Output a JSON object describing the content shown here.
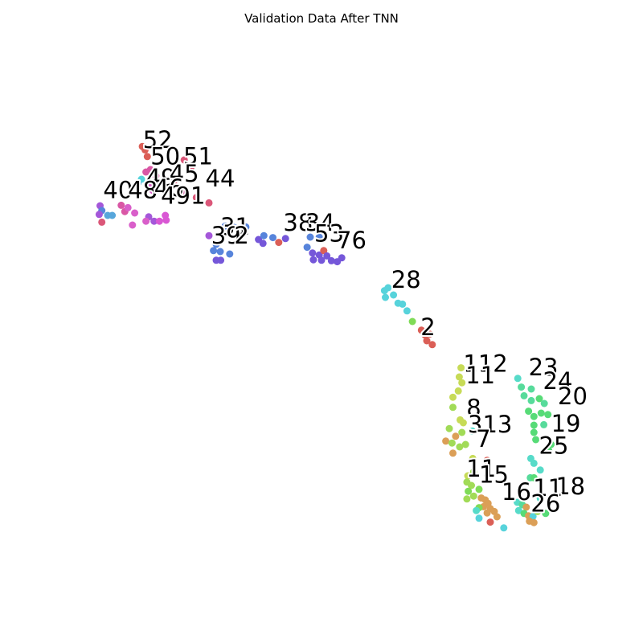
{
  "chart_data": {
    "type": "scatter",
    "title": "Validation Data After TNN",
    "xlabel": "",
    "ylabel": "",
    "axes_visible": false,
    "grid": false,
    "legend": "none",
    "xlim": [
      0,
      100
    ],
    "ylim": [
      0,
      100
    ],
    "palette": "hls",
    "n_classes": 54,
    "point_labels": [
      {
        "text": "52",
        "x": 10.3,
        "y": 86.0
      },
      {
        "text": "50",
        "x": 12.0,
        "y": 82.6
      },
      {
        "text": "51",
        "x": 19.3,
        "y": 82.6
      },
      {
        "text": "49",
        "x": 11.0,
        "y": 78.2
      },
      {
        "text": "45",
        "x": 16.2,
        "y": 79.0
      },
      {
        "text": "44",
        "x": 24.2,
        "y": 78.0
      },
      {
        "text": "40",
        "x": 1.5,
        "y": 75.6
      },
      {
        "text": "48",
        "x": 7.0,
        "y": 75.6
      },
      {
        "text": "46",
        "x": 12.8,
        "y": 76.0
      },
      {
        "text": "491",
        "x": 14.3,
        "y": 74.4
      },
      {
        "text": "31",
        "x": 27.5,
        "y": 68.0
      },
      {
        "text": "39",
        "x": 25.5,
        "y": 66.2
      },
      {
        "text": "2",
        "x": 30.6,
        "y": 66.2
      },
      {
        "text": "38",
        "x": 41.5,
        "y": 68.8
      },
      {
        "text": "34",
        "x": 46.4,
        "y": 68.8
      },
      {
        "text": "53",
        "x": 48.4,
        "y": 66.6
      },
      {
        "text": "76",
        "x": 53.4,
        "y": 65.2
      },
      {
        "text": "28",
        "x": 65.5,
        "y": 57.0
      },
      {
        "text": "2",
        "x": 72.0,
        "y": 47.2
      },
      {
        "text": "112",
        "x": 81.5,
        "y": 39.6
      },
      {
        "text": "11",
        "x": 82.0,
        "y": 37.2
      },
      {
        "text": "23",
        "x": 96.0,
        "y": 38.8
      },
      {
        "text": "24",
        "x": 99.2,
        "y": 36.0
      },
      {
        "text": "20",
        "x": 102.5,
        "y": 32.8
      },
      {
        "text": "8",
        "x": 82.2,
        "y": 30.4
      },
      {
        "text": "19",
        "x": 101.0,
        "y": 27.2
      },
      {
        "text": "313",
        "x": 82.5,
        "y": 27.0
      },
      {
        "text": "7",
        "x": 84.3,
        "y": 24.0
      },
      {
        "text": "25",
        "x": 98.3,
        "y": 22.6
      },
      {
        "text": "11",
        "x": 82.2,
        "y": 17.8
      },
      {
        "text": "15",
        "x": 85.0,
        "y": 16.6
      },
      {
        "text": "16",
        "x": 90.0,
        "y": 13.0
      },
      {
        "text": "18",
        "x": 102.0,
        "y": 14.2
      },
      {
        "text": "11",
        "x": 97.0,
        "y": 13.8
      },
      {
        "text": "26",
        "x": 96.5,
        "y": 10.6
      }
    ],
    "points": [
      {
        "x": 10.2,
        "y": 86.3,
        "c": "#db5f57"
      },
      {
        "x": 10.8,
        "y": 85.6,
        "c": "#db5f57"
      },
      {
        "x": 11.3,
        "y": 84.2,
        "c": "#db5f57"
      },
      {
        "x": 12.0,
        "y": 81.5,
        "c": "#d957a5"
      },
      {
        "x": 11.0,
        "y": 81.0,
        "c": "#d957a5"
      },
      {
        "x": 13.2,
        "y": 80.2,
        "c": "#d957a5"
      },
      {
        "x": 19.5,
        "y": 83.5,
        "c": "#db5779"
      },
      {
        "x": 21.0,
        "y": 82.0,
        "c": "#db5779"
      },
      {
        "x": 17.3,
        "y": 79.0,
        "c": "#db5779"
      },
      {
        "x": 11.6,
        "y": 78.2,
        "c": "#d95fca"
      },
      {
        "x": 12.5,
        "y": 77.2,
        "c": "#d95fca"
      },
      {
        "x": 10.0,
        "y": 79.5,
        "c": "#57d3db"
      },
      {
        "x": 9.2,
        "y": 78.7,
        "c": "#57a6db"
      },
      {
        "x": 15.5,
        "y": 77.6,
        "c": "#d957a5"
      },
      {
        "x": 19.0,
        "y": 76.8,
        "c": "#d957a5"
      },
      {
        "x": 22.2,
        "y": 75.7,
        "c": "#db5779"
      },
      {
        "x": 25.0,
        "y": 74.6,
        "c": "#db5779"
      },
      {
        "x": 0.8,
        "y": 74.0,
        "c": "#a457d9"
      },
      {
        "x": 1.2,
        "y": 73.0,
        "c": "#5784db"
      },
      {
        "x": 0.6,
        "y": 72.2,
        "c": "#a457d9"
      },
      {
        "x": 2.5,
        "y": 72.0,
        "c": "#57a6db"
      },
      {
        "x": 3.5,
        "y": 72.0,
        "c": "#57a6db"
      },
      {
        "x": 1.2,
        "y": 70.6,
        "c": "#db5779"
      },
      {
        "x": 5.5,
        "y": 74.1,
        "c": "#d957a5"
      },
      {
        "x": 6.3,
        "y": 72.8,
        "c": "#d957a5"
      },
      {
        "x": 7.0,
        "y": 73.6,
        "c": "#d95fca"
      },
      {
        "x": 8.5,
        "y": 72.5,
        "c": "#d95fca"
      },
      {
        "x": 11.6,
        "y": 71.7,
        "c": "#a457d9"
      },
      {
        "x": 11.0,
        "y": 70.8,
        "c": "#d95fca"
      },
      {
        "x": 12.8,
        "y": 70.8,
        "c": "#a457d9"
      },
      {
        "x": 14.0,
        "y": 70.8,
        "c": "#d957d4"
      },
      {
        "x": 15.3,
        "y": 72.0,
        "c": "#d957d4"
      },
      {
        "x": 8.0,
        "y": 70.0,
        "c": "#d95fca"
      },
      {
        "x": 15.5,
        "y": 71.0,
        "c": "#d957d4"
      },
      {
        "x": 25.0,
        "y": 67.8,
        "c": "#a457d9"
      },
      {
        "x": 28.6,
        "y": 69.8,
        "c": "#5784db"
      },
      {
        "x": 30.6,
        "y": 69.5,
        "c": "#5784db"
      },
      {
        "x": 33.2,
        "y": 69.6,
        "c": "#5784db"
      },
      {
        "x": 26.6,
        "y": 66.0,
        "c": "#5784db"
      },
      {
        "x": 26.0,
        "y": 64.7,
        "c": "#5784db"
      },
      {
        "x": 27.5,
        "y": 64.5,
        "c": "#5784db"
      },
      {
        "x": 29.6,
        "y": 64.0,
        "c": "#5784db"
      },
      {
        "x": 26.6,
        "y": 62.7,
        "c": "#7557d9"
      },
      {
        "x": 27.6,
        "y": 62.7,
        "c": "#7557d9"
      },
      {
        "x": 36.0,
        "y": 67.0,
        "c": "#7557d9"
      },
      {
        "x": 37.0,
        "y": 66.2,
        "c": "#7557d9"
      },
      {
        "x": 37.2,
        "y": 67.8,
        "c": "#5784db"
      },
      {
        "x": 39.2,
        "y": 67.4,
        "c": "#5784db"
      },
      {
        "x": 40.5,
        "y": 66.4,
        "c": "#db5f57"
      },
      {
        "x": 42.0,
        "y": 67.2,
        "c": "#7557d9"
      },
      {
        "x": 47.5,
        "y": 67.5,
        "c": "#5784db"
      },
      {
        "x": 49.5,
        "y": 67.5,
        "c": "#5784db"
      },
      {
        "x": 46.8,
        "y": 65.4,
        "c": "#5784db"
      },
      {
        "x": 48.0,
        "y": 64.2,
        "c": "#7557d9"
      },
      {
        "x": 49.5,
        "y": 63.8,
        "c": "#7557d9"
      },
      {
        "x": 50.5,
        "y": 64.7,
        "c": "#db5f57"
      },
      {
        "x": 51.2,
        "y": 63.6,
        "c": "#7557d9"
      },
      {
        "x": 48.2,
        "y": 62.8,
        "c": "#7557d9"
      },
      {
        "x": 50.0,
        "y": 62.7,
        "c": "#7557d9"
      },
      {
        "x": 52.2,
        "y": 62.6,
        "c": "#7557d9"
      },
      {
        "x": 53.5,
        "y": 62.4,
        "c": "#7557d9"
      },
      {
        "x": 54.5,
        "y": 63.2,
        "c": "#7557d9"
      },
      {
        "x": 64.0,
        "y": 56.4,
        "c": "#57d3db"
      },
      {
        "x": 64.8,
        "y": 57.0,
        "c": "#57d3db"
      },
      {
        "x": 64.2,
        "y": 55.0,
        "c": "#57d3db"
      },
      {
        "x": 66.0,
        "y": 55.5,
        "c": "#57d3db"
      },
      {
        "x": 67.0,
        "y": 53.8,
        "c": "#57d3db"
      },
      {
        "x": 68.0,
        "y": 53.6,
        "c": "#57d3db"
      },
      {
        "x": 69.0,
        "y": 52.2,
        "c": "#57d3db"
      },
      {
        "x": 70.2,
        "y": 50.0,
        "c": "#7fdb57"
      },
      {
        "x": 72.2,
        "y": 48.2,
        "c": "#db5f57"
      },
      {
        "x": 73.0,
        "y": 47.2,
        "c": "#db5f57"
      },
      {
        "x": 74.0,
        "y": 47.4,
        "c": "#db5f57"
      },
      {
        "x": 73.4,
        "y": 46.0,
        "c": "#db5f57"
      },
      {
        "x": 74.6,
        "y": 45.2,
        "c": "#db5f57"
      },
      {
        "x": 81.0,
        "y": 40.4,
        "c": "#c7db57"
      },
      {
        "x": 80.6,
        "y": 38.5,
        "c": "#c7db57"
      },
      {
        "x": 81.2,
        "y": 37.3,
        "c": "#c7db57"
      },
      {
        "x": 80.4,
        "y": 35.6,
        "c": "#c7db57"
      },
      {
        "x": 79.2,
        "y": 34.3,
        "c": "#c7db57"
      },
      {
        "x": 79.2,
        "y": 32.2,
        "c": "#a1db57"
      },
      {
        "x": 80.8,
        "y": 29.6,
        "c": "#c7db57"
      },
      {
        "x": 81.5,
        "y": 29.0,
        "c": "#c7db57"
      },
      {
        "x": 78.4,
        "y": 27.8,
        "c": "#a1db57"
      },
      {
        "x": 79.8,
        "y": 26.2,
        "c": "#db9f57"
      },
      {
        "x": 81.2,
        "y": 27.0,
        "c": "#a1db57"
      },
      {
        "x": 77.6,
        "y": 25.2,
        "c": "#db9f57"
      },
      {
        "x": 79.0,
        "y": 24.8,
        "c": "#a1db57"
      },
      {
        "x": 80.7,
        "y": 24.0,
        "c": "#a1db57"
      },
      {
        "x": 82.0,
        "y": 24.5,
        "c": "#a1db57"
      },
      {
        "x": 83.5,
        "y": 27.3,
        "c": "#57dbc9"
      },
      {
        "x": 79.2,
        "y": 22.7,
        "c": "#db9f57"
      },
      {
        "x": 83.6,
        "y": 21.6,
        "c": "#c7db57"
      },
      {
        "x": 86.8,
        "y": 21.2,
        "c": "#db5f57"
      },
      {
        "x": 93.6,
        "y": 38.2,
        "c": "#57dbc9"
      },
      {
        "x": 94.4,
        "y": 36.4,
        "c": "#57db9b"
      },
      {
        "x": 96.6,
        "y": 36.0,
        "c": "#57db9b"
      },
      {
        "x": 95.0,
        "y": 34.6,
        "c": "#57db9b"
      },
      {
        "x": 96.6,
        "y": 33.6,
        "c": "#57db9b"
      },
      {
        "x": 98.4,
        "y": 34.0,
        "c": "#57db77"
      },
      {
        "x": 99.5,
        "y": 33.0,
        "c": "#57db9b"
      },
      {
        "x": 96.0,
        "y": 31.4,
        "c": "#57db77"
      },
      {
        "x": 97.2,
        "y": 30.3,
        "c": "#57db77"
      },
      {
        "x": 98.8,
        "y": 31.0,
        "c": "#57db77"
      },
      {
        "x": 100.3,
        "y": 30.7,
        "c": "#57db77"
      },
      {
        "x": 99.4,
        "y": 28.6,
        "c": "#57db9b"
      },
      {
        "x": 97.2,
        "y": 28.5,
        "c": "#57db77"
      },
      {
        "x": 97.2,
        "y": 27.0,
        "c": "#57db77"
      },
      {
        "x": 97.6,
        "y": 25.5,
        "c": "#57db77"
      },
      {
        "x": 101.0,
        "y": 24.5,
        "c": "#57db77"
      },
      {
        "x": 100.5,
        "y": 23.2,
        "c": "#57db77"
      },
      {
        "x": 96.5,
        "y": 21.6,
        "c": "#57dbc9"
      },
      {
        "x": 97.2,
        "y": 20.6,
        "c": "#57dbc9"
      },
      {
        "x": 98.6,
        "y": 19.2,
        "c": "#57dbc9"
      },
      {
        "x": 96.4,
        "y": 17.6,
        "c": "#57db9b"
      },
      {
        "x": 97.2,
        "y": 17.6,
        "c": "#57db77"
      },
      {
        "x": 82.5,
        "y": 18.0,
        "c": "#c7db57"
      },
      {
        "x": 83.8,
        "y": 18.8,
        "c": "#a1db57"
      },
      {
        "x": 82.3,
        "y": 16.7,
        "c": "#a1db57"
      },
      {
        "x": 83.3,
        "y": 16.0,
        "c": "#a1db57"
      },
      {
        "x": 85.0,
        "y": 15.2,
        "c": "#7fdb57"
      },
      {
        "x": 82.6,
        "y": 14.8,
        "c": "#7fdb57"
      },
      {
        "x": 83.8,
        "y": 13.8,
        "c": "#a1db57"
      },
      {
        "x": 85.5,
        "y": 13.4,
        "c": "#db9f57"
      },
      {
        "x": 86.4,
        "y": 13.0,
        "c": "#db9f57"
      },
      {
        "x": 82.3,
        "y": 13.2,
        "c": "#a1db57"
      },
      {
        "x": 87.0,
        "y": 12.3,
        "c": "#db9f57"
      },
      {
        "x": 86.0,
        "y": 11.6,
        "c": "#db9f57"
      },
      {
        "x": 87.5,
        "y": 11.2,
        "c": "#db9f57"
      },
      {
        "x": 85.0,
        "y": 11.4,
        "c": "#7fdb57"
      },
      {
        "x": 84.4,
        "y": 10.8,
        "c": "#57dbc9"
      },
      {
        "x": 86.8,
        "y": 10.3,
        "c": "#db9f57"
      },
      {
        "x": 88.4,
        "y": 10.6,
        "c": "#db9f57"
      },
      {
        "x": 89.0,
        "y": 9.5,
        "c": "#db9f57"
      },
      {
        "x": 85.0,
        "y": 9.2,
        "c": "#57d3db"
      },
      {
        "x": 87.5,
        "y": 8.4,
        "c": "#db5f57"
      },
      {
        "x": 90.5,
        "y": 7.2,
        "c": "#57d3db"
      },
      {
        "x": 93.5,
        "y": 12.5,
        "c": "#57dbc9"
      },
      {
        "x": 94.6,
        "y": 12.0,
        "c": "#57db9b"
      },
      {
        "x": 95.5,
        "y": 11.5,
        "c": "#db9f57"
      },
      {
        "x": 93.8,
        "y": 10.8,
        "c": "#57dbc9"
      },
      {
        "x": 95.0,
        "y": 10.2,
        "c": "#57db77"
      },
      {
        "x": 96.0,
        "y": 9.7,
        "c": "#db9f57"
      },
      {
        "x": 97.0,
        "y": 9.6,
        "c": "#57d3db"
      },
      {
        "x": 98.0,
        "y": 10.6,
        "c": "#a1db57"
      },
      {
        "x": 99.8,
        "y": 10.2,
        "c": "#57db77"
      },
      {
        "x": 96.2,
        "y": 8.6,
        "c": "#db9f57"
      },
      {
        "x": 97.2,
        "y": 8.3,
        "c": "#db9f57"
      },
      {
        "x": 100.6,
        "y": 12.6,
        "c": "#57dbc9"
      },
      {
        "x": 98.6,
        "y": 13.3,
        "c": "#57dbc9"
      }
    ]
  }
}
